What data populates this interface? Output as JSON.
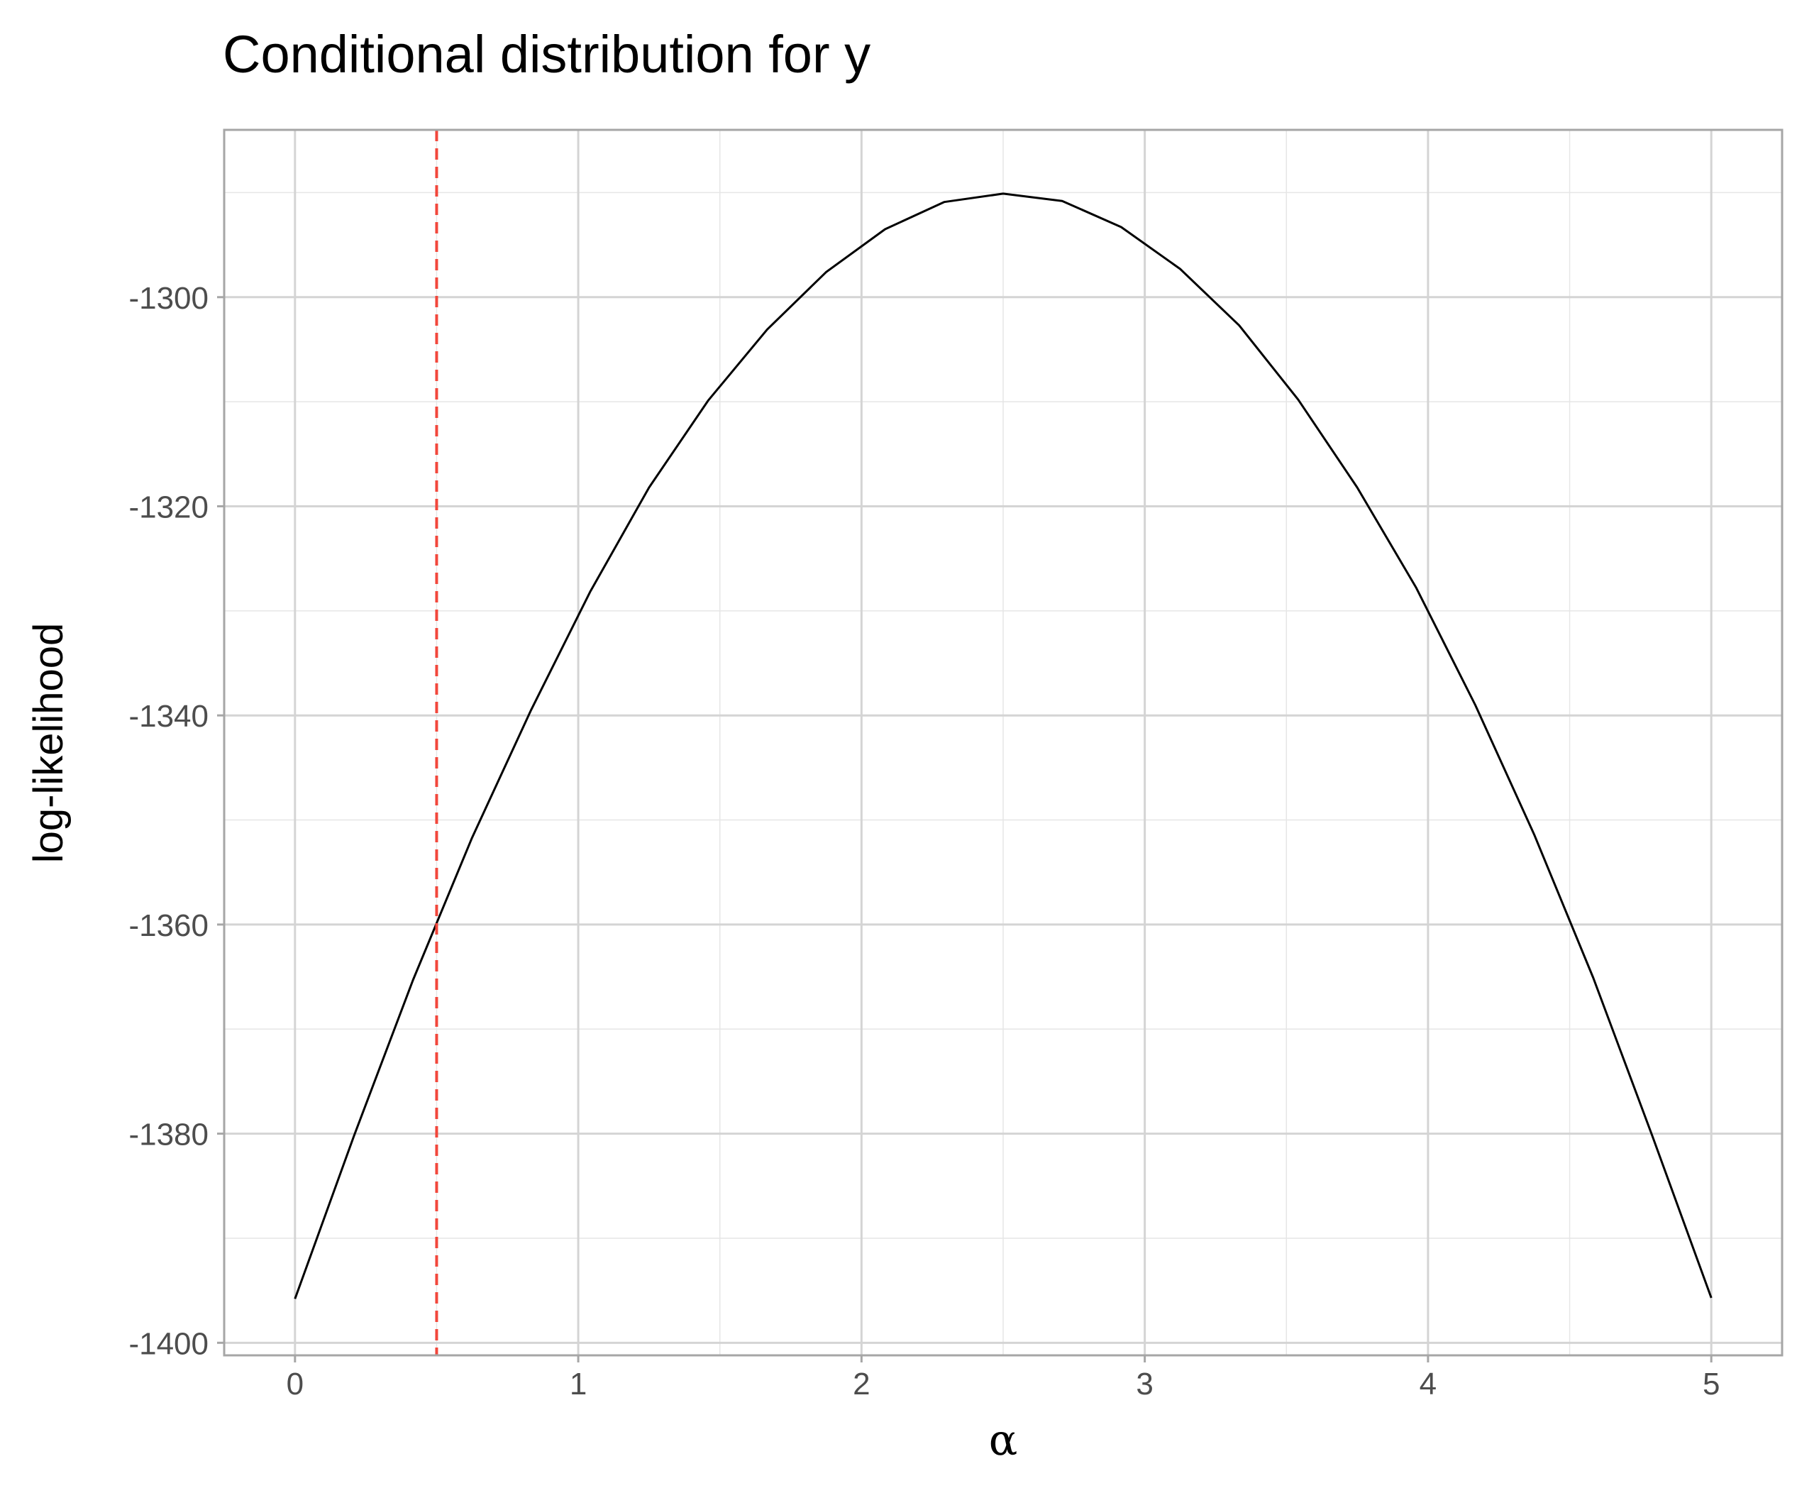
{
  "chart_data": {
    "type": "line",
    "title": "Conditional distribution for  y",
    "xlabel": "α",
    "ylabel": "log-likelihood",
    "xlim": [
      -0.25,
      5.25
    ],
    "ylim": [
      -1401.2,
      -1284
    ],
    "x_ticks": [
      0,
      1,
      2,
      3,
      4,
      5
    ],
    "x_tick_labels": [
      "0",
      "1",
      "2",
      "3",
      "4",
      "5"
    ],
    "y_ticks": [
      -1400,
      -1380,
      -1360,
      -1340,
      -1320,
      -1300
    ],
    "y_tick_labels": [
      "-1400",
      "-1380",
      "-1360",
      "-1340",
      "-1320",
      "-1300"
    ],
    "grid": true,
    "series": [
      {
        "color": "#000000",
        "x": [
          0,
          0.2083,
          0.4167,
          0.625,
          0.8333,
          1.0417,
          1.25,
          1.4583,
          1.6667,
          1.875,
          2.0833,
          2.2917,
          2.5,
          2.7083,
          2.9167,
          3.125,
          3.3333,
          3.5417,
          3.75,
          3.9583,
          4.1667,
          4.375,
          4.5833,
          4.7917,
          5
        ],
        "y": [
          -1395.8,
          -1380.2,
          -1365.3,
          -1351.7,
          -1339.5,
          -1328.2,
          -1318.2,
          -1309.9,
          -1303.1,
          -1297.6,
          -1293.5,
          -1290.9,
          -1290.1,
          -1290.8,
          -1293.3,
          -1297.3,
          -1302.7,
          -1309.8,
          -1318.2,
          -1327.8,
          -1339.0,
          -1351.4,
          -1365.1,
          -1380.2,
          -1395.7
        ]
      }
    ],
    "vline": {
      "x": 0.5,
      "color": "#f2473b",
      "style": "dashed"
    }
  }
}
